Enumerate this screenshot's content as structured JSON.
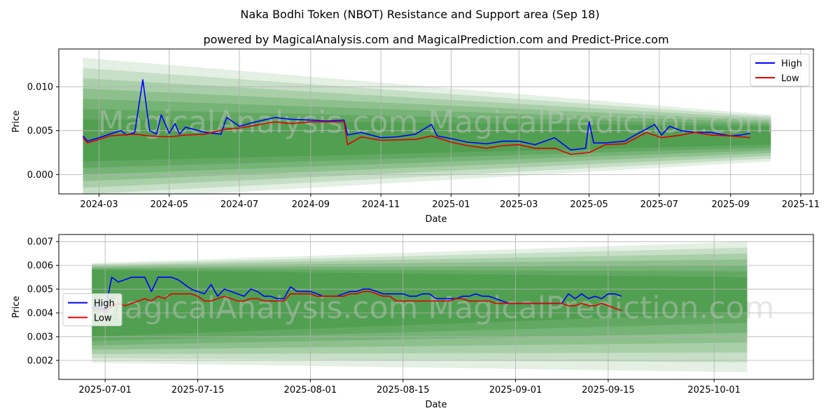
{
  "figure": {
    "title": "Naka Bodhi Token (NBOT) Resistance and Support area (Sep 18)",
    "subtitle": "powered by MagicalAnalysis.com and MagicalPrediction.com and Predict-Price.com",
    "watermark": "MagicalAnalysis.com   MagicalPrediction.com"
  },
  "colors": {
    "high": "#0000ff",
    "low": "#e00000",
    "band": "#2e8b2e",
    "grid": "#b0b0b0"
  },
  "chart_data": [
    {
      "type": "line",
      "xlabel": "Date",
      "ylabel": "Price",
      "xlim": [
        "2024-01-26",
        "2025-11-12"
      ],
      "ylim": [
        -0.0022,
        0.0143
      ],
      "x_ticks": [
        "2024-03",
        "2024-05",
        "2024-07",
        "2024-09",
        "2024-11",
        "2025-01",
        "2025-03",
        "2025-05",
        "2025-07",
        "2025-09",
        "2025-11"
      ],
      "y_ticks": [
        "0.000",
        "0.005",
        "0.010"
      ],
      "legend": "top-right",
      "grid": true,
      "bands": {
        "x": [
          "2024-02-16",
          "2025-10-06"
        ],
        "outer": {
          "start": [
            -0.003,
            0.0133
          ],
          "end": [
            0.0015,
            0.0068
          ]
        },
        "core": {
          "start": [
            0.0015,
            0.0063
          ],
          "end": [
            0.0034,
            0.0055
          ]
        }
      },
      "series": [
        {
          "name": "High",
          "x": [
            "2024-02-16",
            "2024-02-20",
            "2024-03-01",
            "2024-03-10",
            "2024-03-20",
            "2024-03-25",
            "2024-04-01",
            "2024-04-08",
            "2024-04-14",
            "2024-04-20",
            "2024-04-24",
            "2024-05-01",
            "2024-05-06",
            "2024-05-10",
            "2024-05-15",
            "2024-06-01",
            "2024-06-15",
            "2024-06-20",
            "2024-07-01",
            "2024-07-15",
            "2024-08-01",
            "2024-08-15",
            "2024-09-01",
            "2024-09-15",
            "2024-09-30",
            "2024-10-03",
            "2024-10-15",
            "2024-11-01",
            "2024-11-15",
            "2024-12-01",
            "2024-12-15",
            "2024-12-20",
            "2025-01-01",
            "2025-01-15",
            "2025-02-01",
            "2025-02-15",
            "2025-03-01",
            "2025-03-15",
            "2025-04-01",
            "2025-04-15",
            "2025-04-28",
            "2025-05-01",
            "2025-05-05",
            "2025-05-15",
            "2025-06-01",
            "2025-06-10",
            "2025-06-20",
            "2025-06-27",
            "2025-07-03",
            "2025-07-10",
            "2025-07-20",
            "2025-08-01",
            "2025-08-15",
            "2025-09-01",
            "2025-09-10",
            "2025-09-18"
          ],
          "values": [
            0.0044,
            0.0038,
            0.0042,
            0.0046,
            0.005,
            0.0045,
            0.0048,
            0.0108,
            0.005,
            0.0046,
            0.0068,
            0.0047,
            0.0058,
            0.0046,
            0.0054,
            0.0048,
            0.0046,
            0.0065,
            0.0055,
            0.006,
            0.0065,
            0.0063,
            0.0062,
            0.0061,
            0.0062,
            0.0045,
            0.0048,
            0.0042,
            0.0043,
            0.0046,
            0.0057,
            0.0044,
            0.0041,
            0.0037,
            0.0035,
            0.0038,
            0.0038,
            0.0034,
            0.0042,
            0.0028,
            0.003,
            0.006,
            0.0036,
            0.0036,
            0.0038,
            0.0045,
            0.0052,
            0.0057,
            0.0045,
            0.0055,
            0.005,
            0.0048,
            0.0048,
            0.0044,
            0.0045,
            0.0047
          ]
        },
        {
          "name": "Low",
          "x": [
            "2024-02-16",
            "2024-02-20",
            "2024-03-01",
            "2024-03-10",
            "2024-03-20",
            "2024-04-01",
            "2024-04-14",
            "2024-05-01",
            "2024-05-15",
            "2024-06-01",
            "2024-06-20",
            "2024-07-01",
            "2024-07-15",
            "2024-08-01",
            "2024-08-15",
            "2024-09-01",
            "2024-09-30",
            "2024-10-03",
            "2024-10-15",
            "2024-11-01",
            "2024-12-01",
            "2024-12-15",
            "2025-01-01",
            "2025-01-15",
            "2025-02-01",
            "2025-02-15",
            "2025-03-01",
            "2025-03-15",
            "2025-04-01",
            "2025-04-15",
            "2025-05-01",
            "2025-05-15",
            "2025-06-01",
            "2025-06-20",
            "2025-07-03",
            "2025-07-20",
            "2025-08-01",
            "2025-08-15",
            "2025-09-01",
            "2025-09-10",
            "2025-09-18"
          ],
          "values": [
            0.0042,
            0.0036,
            0.004,
            0.0044,
            0.0045,
            0.0046,
            0.0044,
            0.0043,
            0.0045,
            0.0046,
            0.0052,
            0.0053,
            0.0056,
            0.006,
            0.0058,
            0.006,
            0.006,
            0.0034,
            0.0043,
            0.0039,
            0.004,
            0.0044,
            0.0037,
            0.0033,
            0.003,
            0.0033,
            0.0034,
            0.003,
            0.003,
            0.0023,
            0.0025,
            0.0034,
            0.0035,
            0.0048,
            0.0042,
            0.0045,
            0.0048,
            0.0045,
            0.0044,
            0.0043,
            0.0042
          ]
        }
      ]
    },
    {
      "type": "line",
      "xlabel": "Date",
      "ylabel": "Price",
      "xlim": [
        "2025-06-24",
        "2025-10-16"
      ],
      "ylim": [
        0.0012,
        0.0073
      ],
      "x_ticks": [
        "2025-07-01",
        "2025-07-15",
        "2025-08-01",
        "2025-08-15",
        "2025-09-01",
        "2025-09-15",
        "2025-10-01"
      ],
      "y_ticks": [
        "0.002",
        "0.003",
        "0.004",
        "0.005",
        "0.006",
        "0.007"
      ],
      "legend": "center-left",
      "grid": true,
      "bands": {
        "x": [
          "2025-06-29",
          "2025-10-06"
        ],
        "outer": {
          "start": [
            0.0019,
            0.0061
          ],
          "end": [
            0.0015,
            0.007
          ]
        },
        "core": {
          "start": [
            0.003,
            0.0058
          ],
          "end": [
            0.004,
            0.0055
          ]
        }
      },
      "series": [
        {
          "name": "High",
          "x": [
            "2025-06-29",
            "2025-06-30",
            "2025-07-01",
            "2025-07-02",
            "2025-07-03",
            "2025-07-04",
            "2025-07-05",
            "2025-07-06",
            "2025-07-07",
            "2025-07-08",
            "2025-07-09",
            "2025-07-10",
            "2025-07-11",
            "2025-07-12",
            "2025-07-13",
            "2025-07-14",
            "2025-07-15",
            "2025-07-16",
            "2025-07-17",
            "2025-07-18",
            "2025-07-19",
            "2025-07-20",
            "2025-07-21",
            "2025-07-22",
            "2025-07-23",
            "2025-07-24",
            "2025-07-25",
            "2025-07-26",
            "2025-07-27",
            "2025-07-28",
            "2025-07-29",
            "2025-07-30",
            "2025-07-31",
            "2025-08-01",
            "2025-08-02",
            "2025-08-03",
            "2025-08-04",
            "2025-08-05",
            "2025-08-06",
            "2025-08-07",
            "2025-08-08",
            "2025-08-09",
            "2025-08-10",
            "2025-08-11",
            "2025-08-12",
            "2025-08-13",
            "2025-08-14",
            "2025-08-15",
            "2025-08-16",
            "2025-08-17",
            "2025-08-18",
            "2025-08-19",
            "2025-08-20",
            "2025-08-21",
            "2025-08-22",
            "2025-08-23",
            "2025-08-24",
            "2025-08-25",
            "2025-08-26",
            "2025-08-27",
            "2025-08-28",
            "2025-08-29",
            "2025-08-30",
            "2025-08-31",
            "2025-09-01",
            "2025-09-08",
            "2025-09-09",
            "2025-09-10",
            "2025-09-11",
            "2025-09-12",
            "2025-09-13",
            "2025-09-14",
            "2025-09-15",
            "2025-09-16",
            "2025-09-17"
          ],
          "values": [
            0.0042,
            0.0043,
            0.0041,
            0.0055,
            0.0053,
            0.0054,
            0.0055,
            0.0055,
            0.0055,
            0.0049,
            0.0055,
            0.0055,
            0.0055,
            0.0054,
            0.0052,
            0.005,
            0.0049,
            0.0048,
            0.0052,
            0.0047,
            0.005,
            0.0049,
            0.0048,
            0.0047,
            0.005,
            0.0049,
            0.0047,
            0.0047,
            0.0046,
            0.0046,
            0.0051,
            0.0049,
            0.0049,
            0.0049,
            0.0048,
            0.0047,
            0.0047,
            0.0047,
            0.0048,
            0.0049,
            0.0049,
            0.005,
            0.005,
            0.0049,
            0.0048,
            0.0048,
            0.0048,
            0.0048,
            0.0047,
            0.0047,
            0.0048,
            0.0048,
            0.0046,
            0.0046,
            0.0046,
            0.0046,
            0.0047,
            0.0047,
            0.0048,
            0.0047,
            0.0047,
            0.0046,
            0.0045,
            0.0044,
            0.0044,
            0.0044,
            0.0048,
            0.0046,
            0.0048,
            0.0046,
            0.0047,
            0.0046,
            0.0048,
            0.0048,
            0.0047
          ]
        },
        {
          "name": "Low",
          "x": [
            "2025-06-29",
            "2025-06-30",
            "2025-07-01",
            "2025-07-02",
            "2025-07-03",
            "2025-07-04",
            "2025-07-05",
            "2025-07-06",
            "2025-07-07",
            "2025-07-08",
            "2025-07-09",
            "2025-07-10",
            "2025-07-11",
            "2025-07-12",
            "2025-07-13",
            "2025-07-14",
            "2025-07-15",
            "2025-07-16",
            "2025-07-17",
            "2025-07-18",
            "2025-07-19",
            "2025-07-20",
            "2025-07-21",
            "2025-07-22",
            "2025-07-23",
            "2025-07-24",
            "2025-07-25",
            "2025-07-26",
            "2025-07-27",
            "2025-07-28",
            "2025-07-29",
            "2025-07-30",
            "2025-07-31",
            "2025-08-01",
            "2025-08-02",
            "2025-08-03",
            "2025-08-04",
            "2025-08-05",
            "2025-08-06",
            "2025-08-07",
            "2025-08-08",
            "2025-08-09",
            "2025-08-10",
            "2025-08-11",
            "2025-08-12",
            "2025-08-13",
            "2025-08-14",
            "2025-08-15",
            "2025-08-16",
            "2025-08-17",
            "2025-08-18",
            "2025-08-19",
            "2025-08-20",
            "2025-08-21",
            "2025-08-22",
            "2025-08-23",
            "2025-08-24",
            "2025-08-25",
            "2025-08-26",
            "2025-08-27",
            "2025-08-28",
            "2025-08-29",
            "2025-08-30",
            "2025-08-31",
            "2025-09-01",
            "2025-09-08",
            "2025-09-09",
            "2025-09-10",
            "2025-09-11",
            "2025-09-12",
            "2025-09-13",
            "2025-09-14",
            "2025-09-15",
            "2025-09-16",
            "2025-09-17"
          ],
          "values": [
            0.0041,
            0.0042,
            0.004,
            0.0043,
            0.0044,
            0.0043,
            0.0044,
            0.0045,
            0.0046,
            0.0045,
            0.0047,
            0.0046,
            0.0048,
            0.0048,
            0.0048,
            0.0048,
            0.0047,
            0.0045,
            0.0045,
            0.0046,
            0.0047,
            0.0046,
            0.0045,
            0.0045,
            0.0046,
            0.0046,
            0.0045,
            0.0045,
            0.0045,
            0.0045,
            0.0048,
            0.0048,
            0.0048,
            0.0048,
            0.0047,
            0.0047,
            0.0047,
            0.0047,
            0.0047,
            0.0048,
            0.0048,
            0.0049,
            0.0049,
            0.0048,
            0.0047,
            0.0047,
            0.0045,
            0.0045,
            0.0045,
            0.0045,
            0.0045,
            0.0045,
            0.0045,
            0.0045,
            0.0045,
            0.0046,
            0.0046,
            0.0045,
            0.0045,
            0.0045,
            0.0045,
            0.0044,
            0.0044,
            0.0044,
            0.0044,
            0.0044,
            0.0043,
            0.0043,
            0.0044,
            0.0043,
            0.0043,
            0.0044,
            0.0043,
            0.0042,
            0.0041
          ]
        }
      ]
    }
  ]
}
